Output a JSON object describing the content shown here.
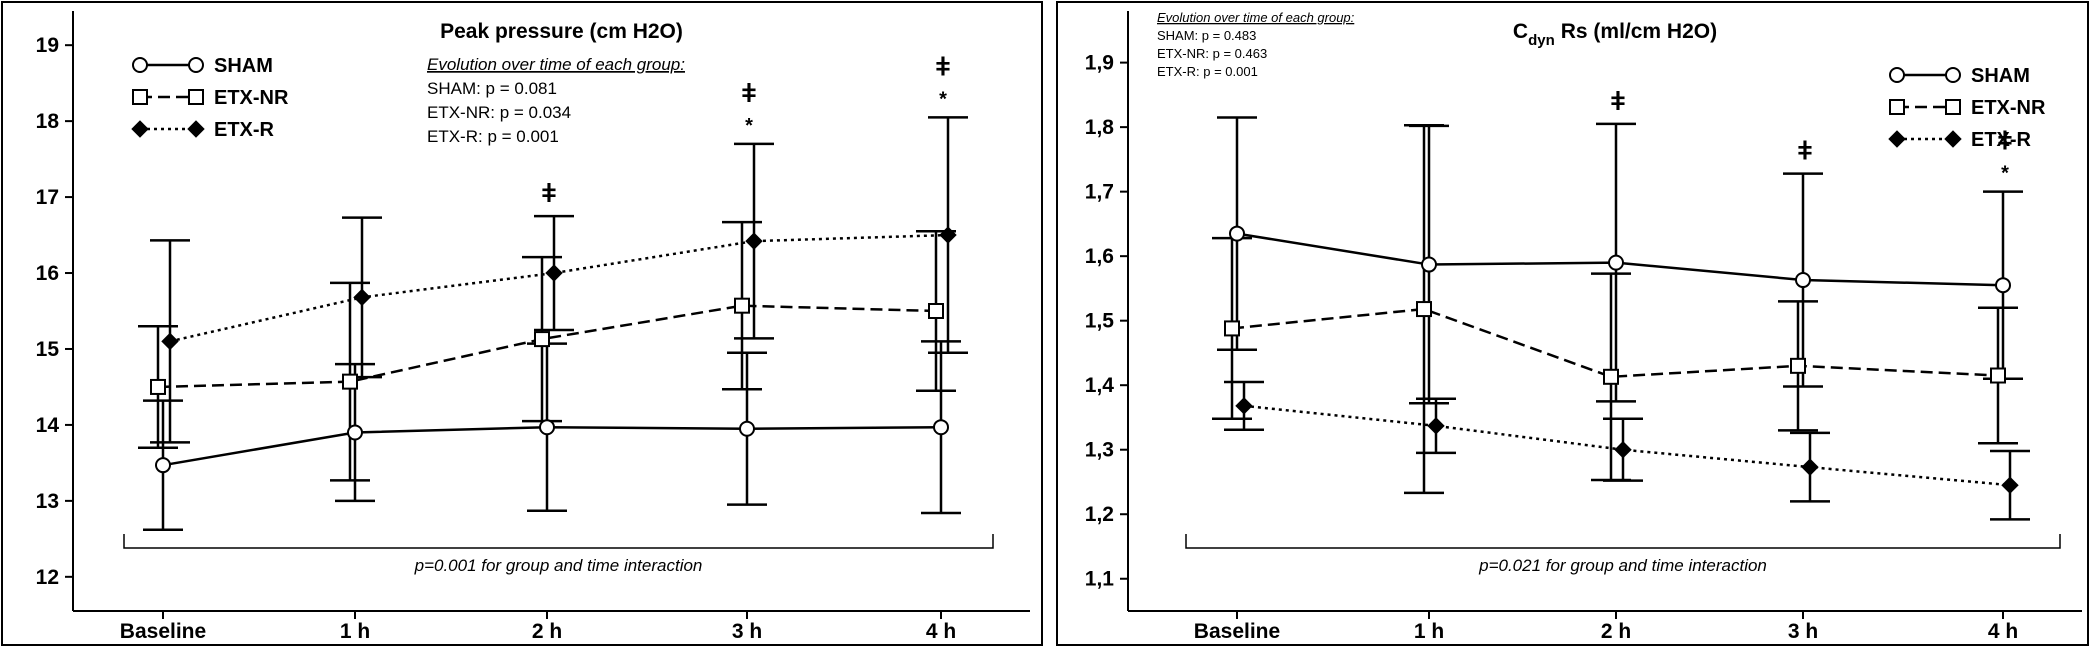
{
  "chart_data": [
    {
      "type": "line",
      "title": "Peak pressure (cm H2O)",
      "categories": [
        "Baseline",
        "1 h",
        "2 h",
        "3 h",
        "4 h"
      ],
      "ylim": [
        11.55,
        19.45
      ],
      "yticks": [
        12,
        13,
        14,
        15,
        16,
        17,
        18,
        19
      ],
      "legend": "upper left",
      "series": [
        {
          "name": "SHAM",
          "color": "#000000",
          "dash": "solid",
          "marker": "circle",
          "values": [
            13.47,
            13.9,
            13.97,
            13.95,
            13.97
          ],
          "errors": [
            0.85,
            0.9,
            1.1,
            1.0,
            1.13
          ]
        },
        {
          "name": "ETX-NR",
          "color": "#000000",
          "dash": "dashed",
          "marker": "square",
          "values": [
            14.5,
            14.57,
            15.13,
            15.57,
            15.5
          ],
          "errors": [
            0.8,
            1.3,
            1.08,
            1.1,
            1.05
          ]
        },
        {
          "name": "ETX-R",
          "color": "#000000",
          "dash": "dotted",
          "marker": "diamond",
          "values": [
            15.1,
            15.68,
            16.0,
            16.42,
            16.5
          ],
          "errors": [
            1.33,
            1.05,
            0.75,
            1.28,
            1.55
          ]
        }
      ],
      "evolution_heading": "Evolution over time of each group:",
      "evolution": [
        "SHAM: p = 0.081",
        "ETX-NR: p = 0.034",
        "ETX-R: p = 0.001"
      ],
      "interaction": "p=0.001 for group and time interaction",
      "annotations": [
        {
          "x": "2 h",
          "text": "ǂ"
        },
        {
          "x": "3 h",
          "text": "ǂ"
        },
        {
          "x": "3 h",
          "text": "*"
        },
        {
          "x": "4 h",
          "text": "ǂ"
        },
        {
          "x": "4 h",
          "text": "*"
        }
      ]
    },
    {
      "type": "line",
      "title": "C",
      "title_subscript": "dyn",
      "title_rest": "Rs (ml/cm H2O)",
      "categories": [
        "Baseline",
        "1 h",
        "2 h",
        "3 h",
        "4 h"
      ],
      "ylim": [
        1.05,
        1.98
      ],
      "yticks": [
        {
          "value": 1.1,
          "label": "1,1"
        },
        {
          "value": 1.2,
          "label": "1,2"
        },
        {
          "value": 1.3,
          "label": "1,3"
        },
        {
          "value": 1.4,
          "label": "1,4"
        },
        {
          "value": 1.5,
          "label": "1,5"
        },
        {
          "value": 1.6,
          "label": "1,6"
        },
        {
          "value": 1.7,
          "label": "1,7"
        },
        {
          "value": 1.8,
          "label": "1,8"
        },
        {
          "value": 1.9,
          "label": "1,9"
        }
      ],
      "legend": "upper right",
      "series": [
        {
          "name": "SHAM",
          "color": "#000000",
          "dash": "solid",
          "marker": "circle",
          "values": [
            1.635,
            1.587,
            1.59,
            1.563,
            1.555
          ],
          "errors": [
            0.18,
            0.215,
            0.215,
            0.165,
            0.145
          ]
        },
        {
          "name": "ETX-NR",
          "color": "#000000",
          "dash": "dashed",
          "marker": "square",
          "values": [
            1.488,
            1.518,
            1.413,
            1.43,
            1.415
          ],
          "errors": [
            0.14,
            0.285,
            0.16,
            0.1,
            0.105
          ]
        },
        {
          "name": "ETX-R",
          "color": "#000000",
          "dash": "dotted",
          "marker": "diamond",
          "values": [
            1.368,
            1.337,
            1.3,
            1.273,
            1.245
          ],
          "errors": [
            0.037,
            0.042,
            0.048,
            0.053,
            0.053
          ]
        }
      ],
      "evolution_heading": "Evolution over time of each group:",
      "evolution": [
        "SHAM: p = 0.483",
        "ETX-NR: p = 0.463",
        "ETX-R: p = 0.001"
      ],
      "interaction": "p=0.021 for group and time interaction",
      "annotations": [
        {
          "x": "2 h",
          "text": "ǂ"
        },
        {
          "x": "3 h",
          "text": "ǂ"
        },
        {
          "x": "4 h",
          "text": "ǂ"
        },
        {
          "x": "4 h",
          "text": "*"
        }
      ]
    }
  ]
}
